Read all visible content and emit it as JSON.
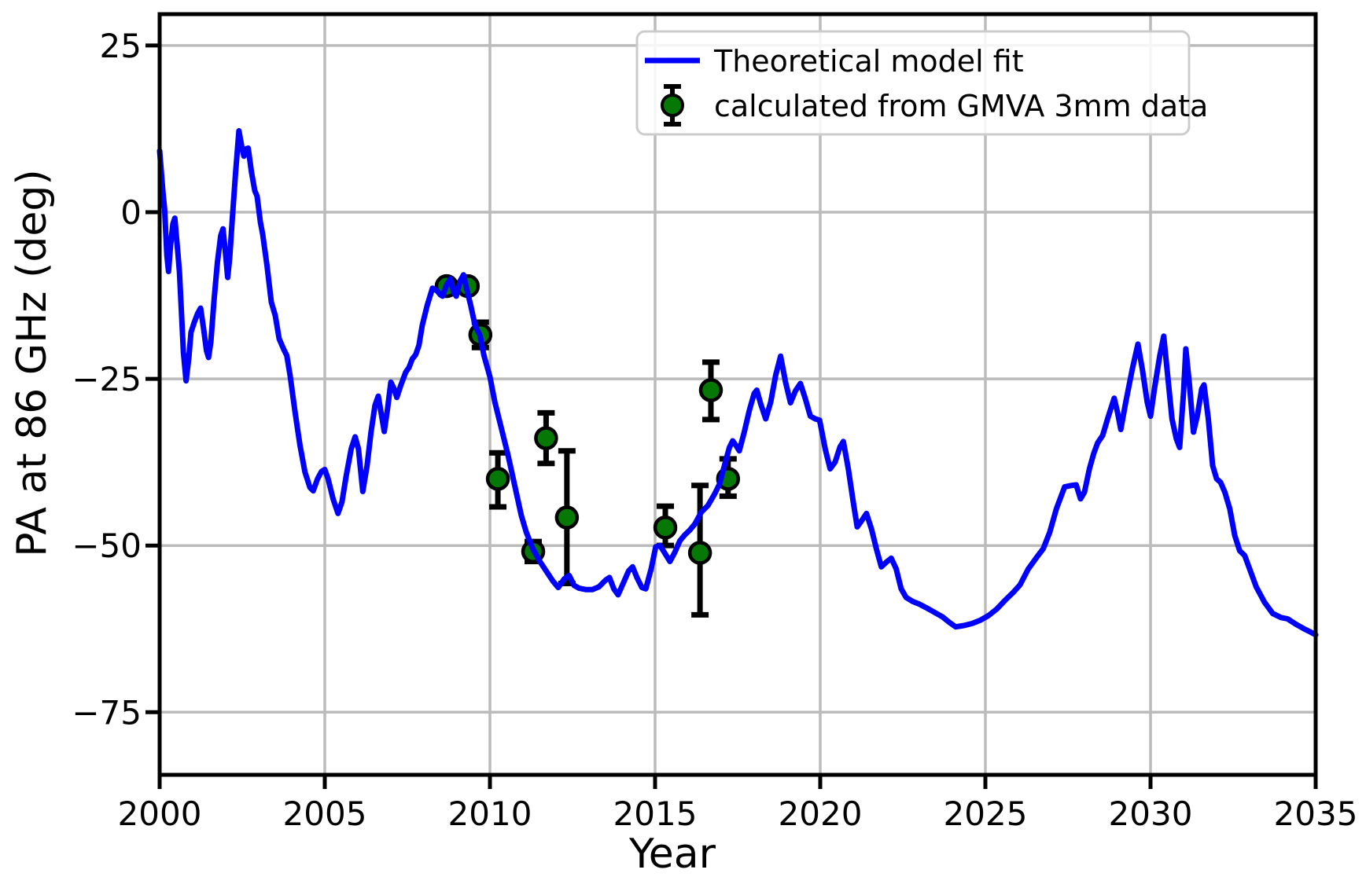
{
  "chart_data": {
    "type": "line",
    "title": "",
    "xlabel": "Year",
    "ylabel": "PA at 86 GHz (deg)",
    "xlim": [
      2000,
      2035
    ],
    "ylim": [
      -84.4,
      29.7
    ],
    "x_ticks": [
      2000,
      2005,
      2010,
      2015,
      2020,
      2025,
      2030,
      2035
    ],
    "y_ticks": [
      25,
      0,
      -25,
      -50,
      -75
    ],
    "grid": true,
    "legend_position": "upper right",
    "colors": {
      "model_line": "#0000ff",
      "marker_fill": "#067806",
      "marker_edge": "#000000",
      "errorbar": "#000000",
      "grid": "#bbbbbb",
      "spine": "#000000",
      "legend_border": "#cccccc"
    },
    "series": [
      {
        "name": "Theoretical model fit",
        "type": "line",
        "points": [
          [
            2000.0,
            9.2
          ],
          [
            2000.1,
            3.0
          ],
          [
            2000.15,
            0.5
          ],
          [
            2000.22,
            -6.5
          ],
          [
            2000.27,
            -8.9
          ],
          [
            2000.33,
            -5.0
          ],
          [
            2000.4,
            -1.8
          ],
          [
            2000.46,
            -0.9
          ],
          [
            2000.55,
            -6.0
          ],
          [
            2000.6,
            -9.0
          ],
          [
            2000.65,
            -14.0
          ],
          [
            2000.72,
            -21.0
          ],
          [
            2000.8,
            -25.3
          ],
          [
            2000.88,
            -22.0
          ],
          [
            2000.95,
            -18.0
          ],
          [
            2001.05,
            -16.5
          ],
          [
            2001.15,
            -15.2
          ],
          [
            2001.24,
            -14.4
          ],
          [
            2001.33,
            -17.5
          ],
          [
            2001.42,
            -20.8
          ],
          [
            2001.48,
            -21.8
          ],
          [
            2001.55,
            -19.5
          ],
          [
            2001.65,
            -13.0
          ],
          [
            2001.75,
            -7.5
          ],
          [
            2001.85,
            -3.5
          ],
          [
            2001.92,
            -2.5
          ],
          [
            2002.0,
            -6.5
          ],
          [
            2002.06,
            -9.8
          ],
          [
            2002.12,
            -7.0
          ],
          [
            2002.2,
            -1.0
          ],
          [
            2002.3,
            6.0
          ],
          [
            2002.4,
            12.2
          ],
          [
            2002.48,
            10.0
          ],
          [
            2002.55,
            8.4
          ],
          [
            2002.62,
            9.5
          ],
          [
            2002.68,
            9.6
          ],
          [
            2002.78,
            6.0
          ],
          [
            2002.88,
            3.2
          ],
          [
            2002.95,
            2.4
          ],
          [
            2003.05,
            -1.5
          ],
          [
            2003.12,
            -3.3
          ],
          [
            2003.25,
            -8.0
          ],
          [
            2003.38,
            -13.5
          ],
          [
            2003.5,
            -15.5
          ],
          [
            2003.62,
            -19.0
          ],
          [
            2003.75,
            -20.5
          ],
          [
            2003.85,
            -21.5
          ],
          [
            2003.95,
            -24.5
          ],
          [
            2004.1,
            -30.0
          ],
          [
            2004.25,
            -35.0
          ],
          [
            2004.4,
            -39.0
          ],
          [
            2004.55,
            -41.3
          ],
          [
            2004.65,
            -41.8
          ],
          [
            2004.78,
            -40.0
          ],
          [
            2004.9,
            -38.9
          ],
          [
            2005.0,
            -38.6
          ],
          [
            2005.1,
            -40.0
          ],
          [
            2005.25,
            -43.0
          ],
          [
            2005.4,
            -45.2
          ],
          [
            2005.52,
            -43.5
          ],
          [
            2005.65,
            -39.5
          ],
          [
            2005.8,
            -35.5
          ],
          [
            2005.92,
            -33.7
          ],
          [
            2006.02,
            -35.5
          ],
          [
            2006.15,
            -41.9
          ],
          [
            2006.28,
            -38.0
          ],
          [
            2006.4,
            -33.0
          ],
          [
            2006.52,
            -29.0
          ],
          [
            2006.62,
            -27.6
          ],
          [
            2006.72,
            -30.5
          ],
          [
            2006.8,
            -32.9
          ],
          [
            2006.9,
            -29.5
          ],
          [
            2007.0,
            -25.5
          ],
          [
            2007.1,
            -26.5
          ],
          [
            2007.18,
            -27.8
          ],
          [
            2007.3,
            -26.0
          ],
          [
            2007.45,
            -24.0
          ],
          [
            2007.55,
            -23.3
          ],
          [
            2007.65,
            -22.0
          ],
          [
            2007.75,
            -21.4
          ],
          [
            2007.85,
            -20.0
          ],
          [
            2007.95,
            -17.0
          ],
          [
            2008.1,
            -14.0
          ],
          [
            2008.26,
            -11.4
          ],
          [
            2008.4,
            -11.8
          ],
          [
            2008.5,
            -12.4
          ],
          [
            2008.57,
            -12.6
          ],
          [
            2008.68,
            -11.0
          ],
          [
            2008.8,
            -10.0
          ],
          [
            2008.9,
            -12.0
          ],
          [
            2008.98,
            -12.6
          ],
          [
            2009.1,
            -10.3
          ],
          [
            2009.2,
            -9.4
          ],
          [
            2009.32,
            -12.0
          ],
          [
            2009.42,
            -14.0
          ],
          [
            2009.55,
            -17.0
          ],
          [
            2009.7,
            -18.5
          ],
          [
            2009.82,
            -21.5
          ],
          [
            2010.0,
            -24.7
          ],
          [
            2010.15,
            -28.5
          ],
          [
            2010.35,
            -32.5
          ],
          [
            2010.55,
            -36.5
          ],
          [
            2010.75,
            -41.0
          ],
          [
            2010.95,
            -45.5
          ],
          [
            2011.1,
            -48.0
          ],
          [
            2011.3,
            -50.5
          ],
          [
            2011.5,
            -52.3
          ],
          [
            2011.7,
            -53.8
          ],
          [
            2011.9,
            -55.3
          ],
          [
            2012.07,
            -56.3
          ],
          [
            2012.25,
            -55.0
          ],
          [
            2012.4,
            -54.5
          ],
          [
            2012.55,
            -56.0
          ],
          [
            2012.7,
            -56.4
          ],
          [
            2012.9,
            -56.6
          ],
          [
            2013.1,
            -56.6
          ],
          [
            2013.3,
            -56.2
          ],
          [
            2013.5,
            -55.2
          ],
          [
            2013.62,
            -54.8
          ],
          [
            2013.75,
            -56.5
          ],
          [
            2013.88,
            -57.4
          ],
          [
            2014.05,
            -55.5
          ],
          [
            2014.2,
            -53.8
          ],
          [
            2014.32,
            -53.2
          ],
          [
            2014.45,
            -54.8
          ],
          [
            2014.6,
            -56.3
          ],
          [
            2014.72,
            -56.5
          ],
          [
            2014.88,
            -53.5
          ],
          [
            2015.02,
            -50.2
          ],
          [
            2015.15,
            -50.0
          ],
          [
            2015.3,
            -51.2
          ],
          [
            2015.45,
            -52.4
          ],
          [
            2015.6,
            -51.0
          ],
          [
            2015.75,
            -49.3
          ],
          [
            2015.9,
            -48.4
          ],
          [
            2016.05,
            -47.7
          ],
          [
            2016.2,
            -46.8
          ],
          [
            2016.4,
            -45.0
          ],
          [
            2016.6,
            -44.0
          ],
          [
            2016.8,
            -42.3
          ],
          [
            2016.95,
            -40.8
          ],
          [
            2017.1,
            -38.0
          ],
          [
            2017.25,
            -35.3
          ],
          [
            2017.35,
            -34.3
          ],
          [
            2017.45,
            -35.0
          ],
          [
            2017.55,
            -35.8
          ],
          [
            2017.7,
            -33.0
          ],
          [
            2017.85,
            -29.8
          ],
          [
            2018.0,
            -27.2
          ],
          [
            2018.08,
            -26.7
          ],
          [
            2018.2,
            -28.8
          ],
          [
            2018.35,
            -31.0
          ],
          [
            2018.5,
            -28.5
          ],
          [
            2018.65,
            -24.5
          ],
          [
            2018.8,
            -21.6
          ],
          [
            2018.95,
            -25.5
          ],
          [
            2019.1,
            -28.6
          ],
          [
            2019.25,
            -26.8
          ],
          [
            2019.4,
            -25.7
          ],
          [
            2019.55,
            -28.0
          ],
          [
            2019.7,
            -30.6
          ],
          [
            2019.85,
            -31.0
          ],
          [
            2019.98,
            -31.2
          ],
          [
            2020.15,
            -35.5
          ],
          [
            2020.3,
            -38.5
          ],
          [
            2020.45,
            -37.5
          ],
          [
            2020.6,
            -35.2
          ],
          [
            2020.7,
            -34.4
          ],
          [
            2020.85,
            -38.5
          ],
          [
            2021.0,
            -43.5
          ],
          [
            2021.12,
            -47.2
          ],
          [
            2021.25,
            -46.3
          ],
          [
            2021.4,
            -45.2
          ],
          [
            2021.55,
            -47.5
          ],
          [
            2021.7,
            -50.5
          ],
          [
            2021.85,
            -53.2
          ],
          [
            2022.0,
            -52.5
          ],
          [
            2022.15,
            -51.9
          ],
          [
            2022.3,
            -53.5
          ],
          [
            2022.45,
            -56.5
          ],
          [
            2022.6,
            -57.8
          ],
          [
            2022.8,
            -58.4
          ],
          [
            2023.0,
            -58.8
          ],
          [
            2023.2,
            -59.3
          ],
          [
            2023.45,
            -60.0
          ],
          [
            2023.7,
            -60.7
          ],
          [
            2023.9,
            -61.5
          ],
          [
            2024.1,
            -62.2
          ],
          [
            2024.35,
            -62.0
          ],
          [
            2024.6,
            -61.7
          ],
          [
            2024.85,
            -61.2
          ],
          [
            2025.1,
            -60.5
          ],
          [
            2025.35,
            -59.5
          ],
          [
            2025.6,
            -58.2
          ],
          [
            2025.85,
            -57.0
          ],
          [
            2026.05,
            -55.9
          ],
          [
            2026.3,
            -53.5
          ],
          [
            2026.55,
            -51.8
          ],
          [
            2026.75,
            -50.5
          ],
          [
            2026.95,
            -48.0
          ],
          [
            2027.15,
            -44.5
          ],
          [
            2027.4,
            -41.2
          ],
          [
            2027.6,
            -41.0
          ],
          [
            2027.75,
            -40.9
          ],
          [
            2027.88,
            -43.0
          ],
          [
            2028.0,
            -42.0
          ],
          [
            2028.15,
            -38.5
          ],
          [
            2028.28,
            -36.2
          ],
          [
            2028.4,
            -34.6
          ],
          [
            2028.55,
            -33.5
          ],
          [
            2028.7,
            -31.0
          ],
          [
            2028.9,
            -27.9
          ],
          [
            2029.0,
            -30.0
          ],
          [
            2029.1,
            -32.6
          ],
          [
            2029.25,
            -28.5
          ],
          [
            2029.45,
            -23.5
          ],
          [
            2029.62,
            -19.8
          ],
          [
            2029.75,
            -23.5
          ],
          [
            2029.9,
            -28.5
          ],
          [
            2030.0,
            -30.6
          ],
          [
            2030.12,
            -26.5
          ],
          [
            2030.28,
            -21.5
          ],
          [
            2030.4,
            -18.6
          ],
          [
            2030.52,
            -24.5
          ],
          [
            2030.65,
            -31.0
          ],
          [
            2030.78,
            -34.0
          ],
          [
            2030.88,
            -35.3
          ],
          [
            2031.0,
            -27.0
          ],
          [
            2031.07,
            -20.5
          ],
          [
            2031.18,
            -26.0
          ],
          [
            2031.3,
            -33.0
          ],
          [
            2031.42,
            -30.5
          ],
          [
            2031.55,
            -26.5
          ],
          [
            2031.62,
            -25.9
          ],
          [
            2031.75,
            -31.0
          ],
          [
            2031.88,
            -38.0
          ],
          [
            2032.0,
            -40.0
          ],
          [
            2032.12,
            -40.5
          ],
          [
            2032.25,
            -42.0
          ],
          [
            2032.4,
            -44.5
          ],
          [
            2032.55,
            -48.5
          ],
          [
            2032.7,
            -50.8
          ],
          [
            2032.85,
            -51.5
          ],
          [
            2033.0,
            -53.5
          ],
          [
            2033.2,
            -56.2
          ],
          [
            2033.45,
            -58.5
          ],
          [
            2033.7,
            -60.2
          ],
          [
            2033.95,
            -60.8
          ],
          [
            2034.15,
            -61.0
          ],
          [
            2034.4,
            -61.8
          ],
          [
            2034.65,
            -62.5
          ],
          [
            2034.85,
            -63.0
          ],
          [
            2035.0,
            -63.4
          ]
        ]
      },
      {
        "name": "calculated from GMVA 3mm data",
        "type": "errorbar-scatter",
        "points": [
          {
            "year": 2008.69,
            "pa": -11.1,
            "err_up": 0.8,
            "err_down": 0.8
          },
          {
            "year": 2009.33,
            "pa": -11.1,
            "err_up": 0.8,
            "err_down": 0.8
          },
          {
            "year": 2009.71,
            "pa": -18.4,
            "err_up": 1.9,
            "err_down": 1.9
          },
          {
            "year": 2010.24,
            "pa": -40.0,
            "err_up": 3.9,
            "err_down": 4.2
          },
          {
            "year": 2011.31,
            "pa": -50.9,
            "err_up": 1.5,
            "err_down": 1.5
          },
          {
            "year": 2011.7,
            "pa": -33.9,
            "err_up": 3.8,
            "err_down": 3.8
          },
          {
            "year": 2012.33,
            "pa": -45.8,
            "err_up": 10.0,
            "err_down": 9.9
          },
          {
            "year": 2015.31,
            "pa": -47.3,
            "err_up": 3.2,
            "err_down": 2.7
          },
          {
            "year": 2016.36,
            "pa": -51.1,
            "err_up": 10.1,
            "err_down": 9.3
          },
          {
            "year": 2016.69,
            "pa": -26.7,
            "err_up": 4.2,
            "err_down": 4.4
          },
          {
            "year": 2017.21,
            "pa": -40.0,
            "err_up": 3.0,
            "err_down": 2.6
          }
        ]
      }
    ]
  },
  "legend": {
    "entries": [
      {
        "label": "Theoretical model fit"
      },
      {
        "label": "calculated from GMVA 3mm data"
      }
    ]
  }
}
